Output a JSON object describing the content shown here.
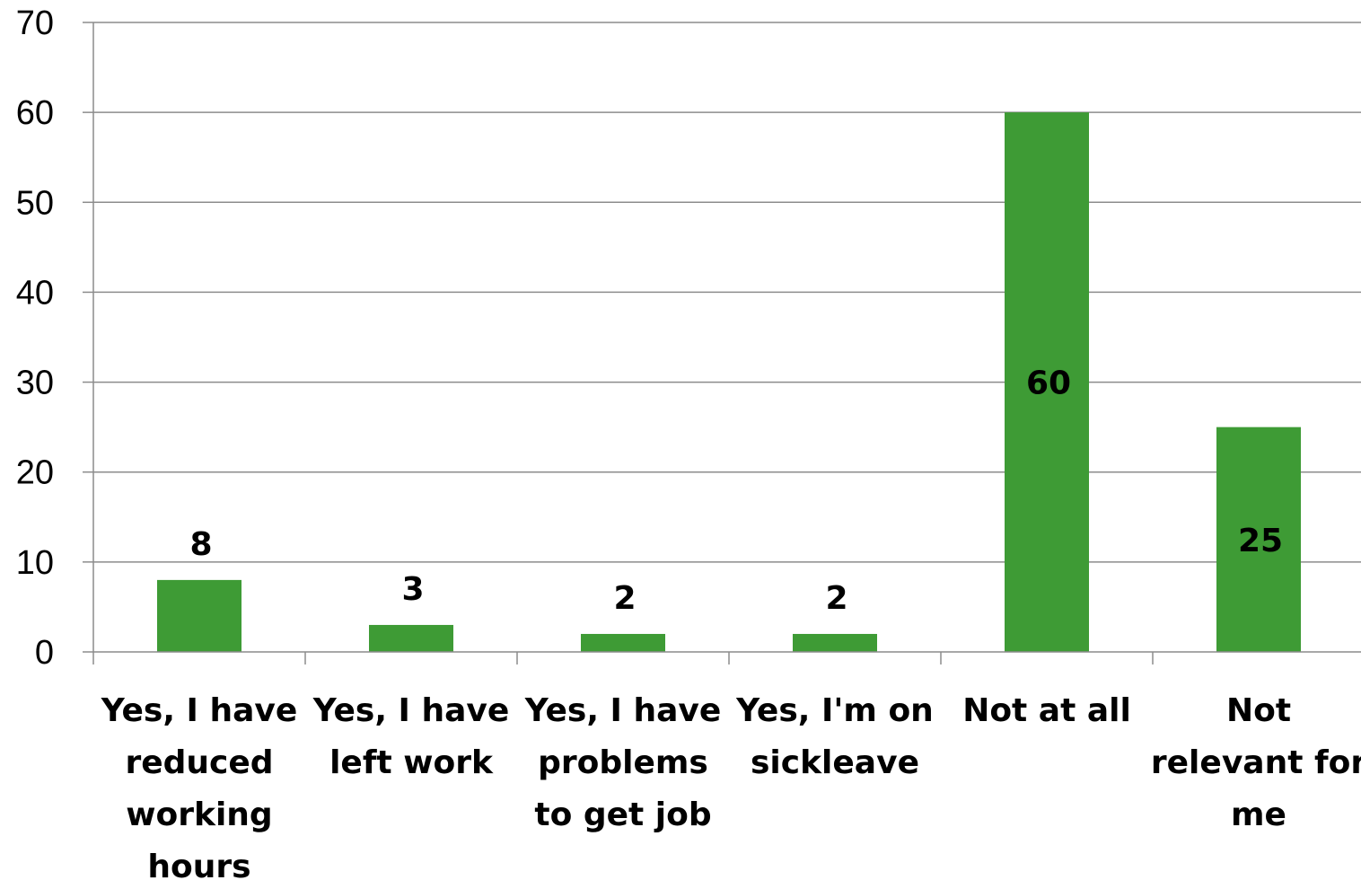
{
  "chart_data": {
    "type": "bar",
    "categories": [
      [
        "Yes, I have",
        "reduced",
        "working",
        "hours"
      ],
      [
        "Yes, I have",
        "left work"
      ],
      [
        "Yes, I have",
        "problems",
        "to get job"
      ],
      [
        "Yes, I'm on",
        "sickleave"
      ],
      [
        "Not at all"
      ],
      [
        "Not",
        "relevant for",
        "me"
      ]
    ],
    "values": [
      8,
      3,
      2,
      2,
      60,
      25
    ],
    "data_labels": [
      "8",
      "3",
      "2",
      "2",
      "60",
      "25"
    ],
    "y_ticks": [
      0,
      10,
      20,
      30,
      40,
      50,
      60,
      70
    ],
    "ylim": [
      0,
      70
    ],
    "title": "",
    "xlabel": "",
    "ylabel": "",
    "grid": true,
    "legend": "none",
    "bar_color": "#3e9b35"
  }
}
